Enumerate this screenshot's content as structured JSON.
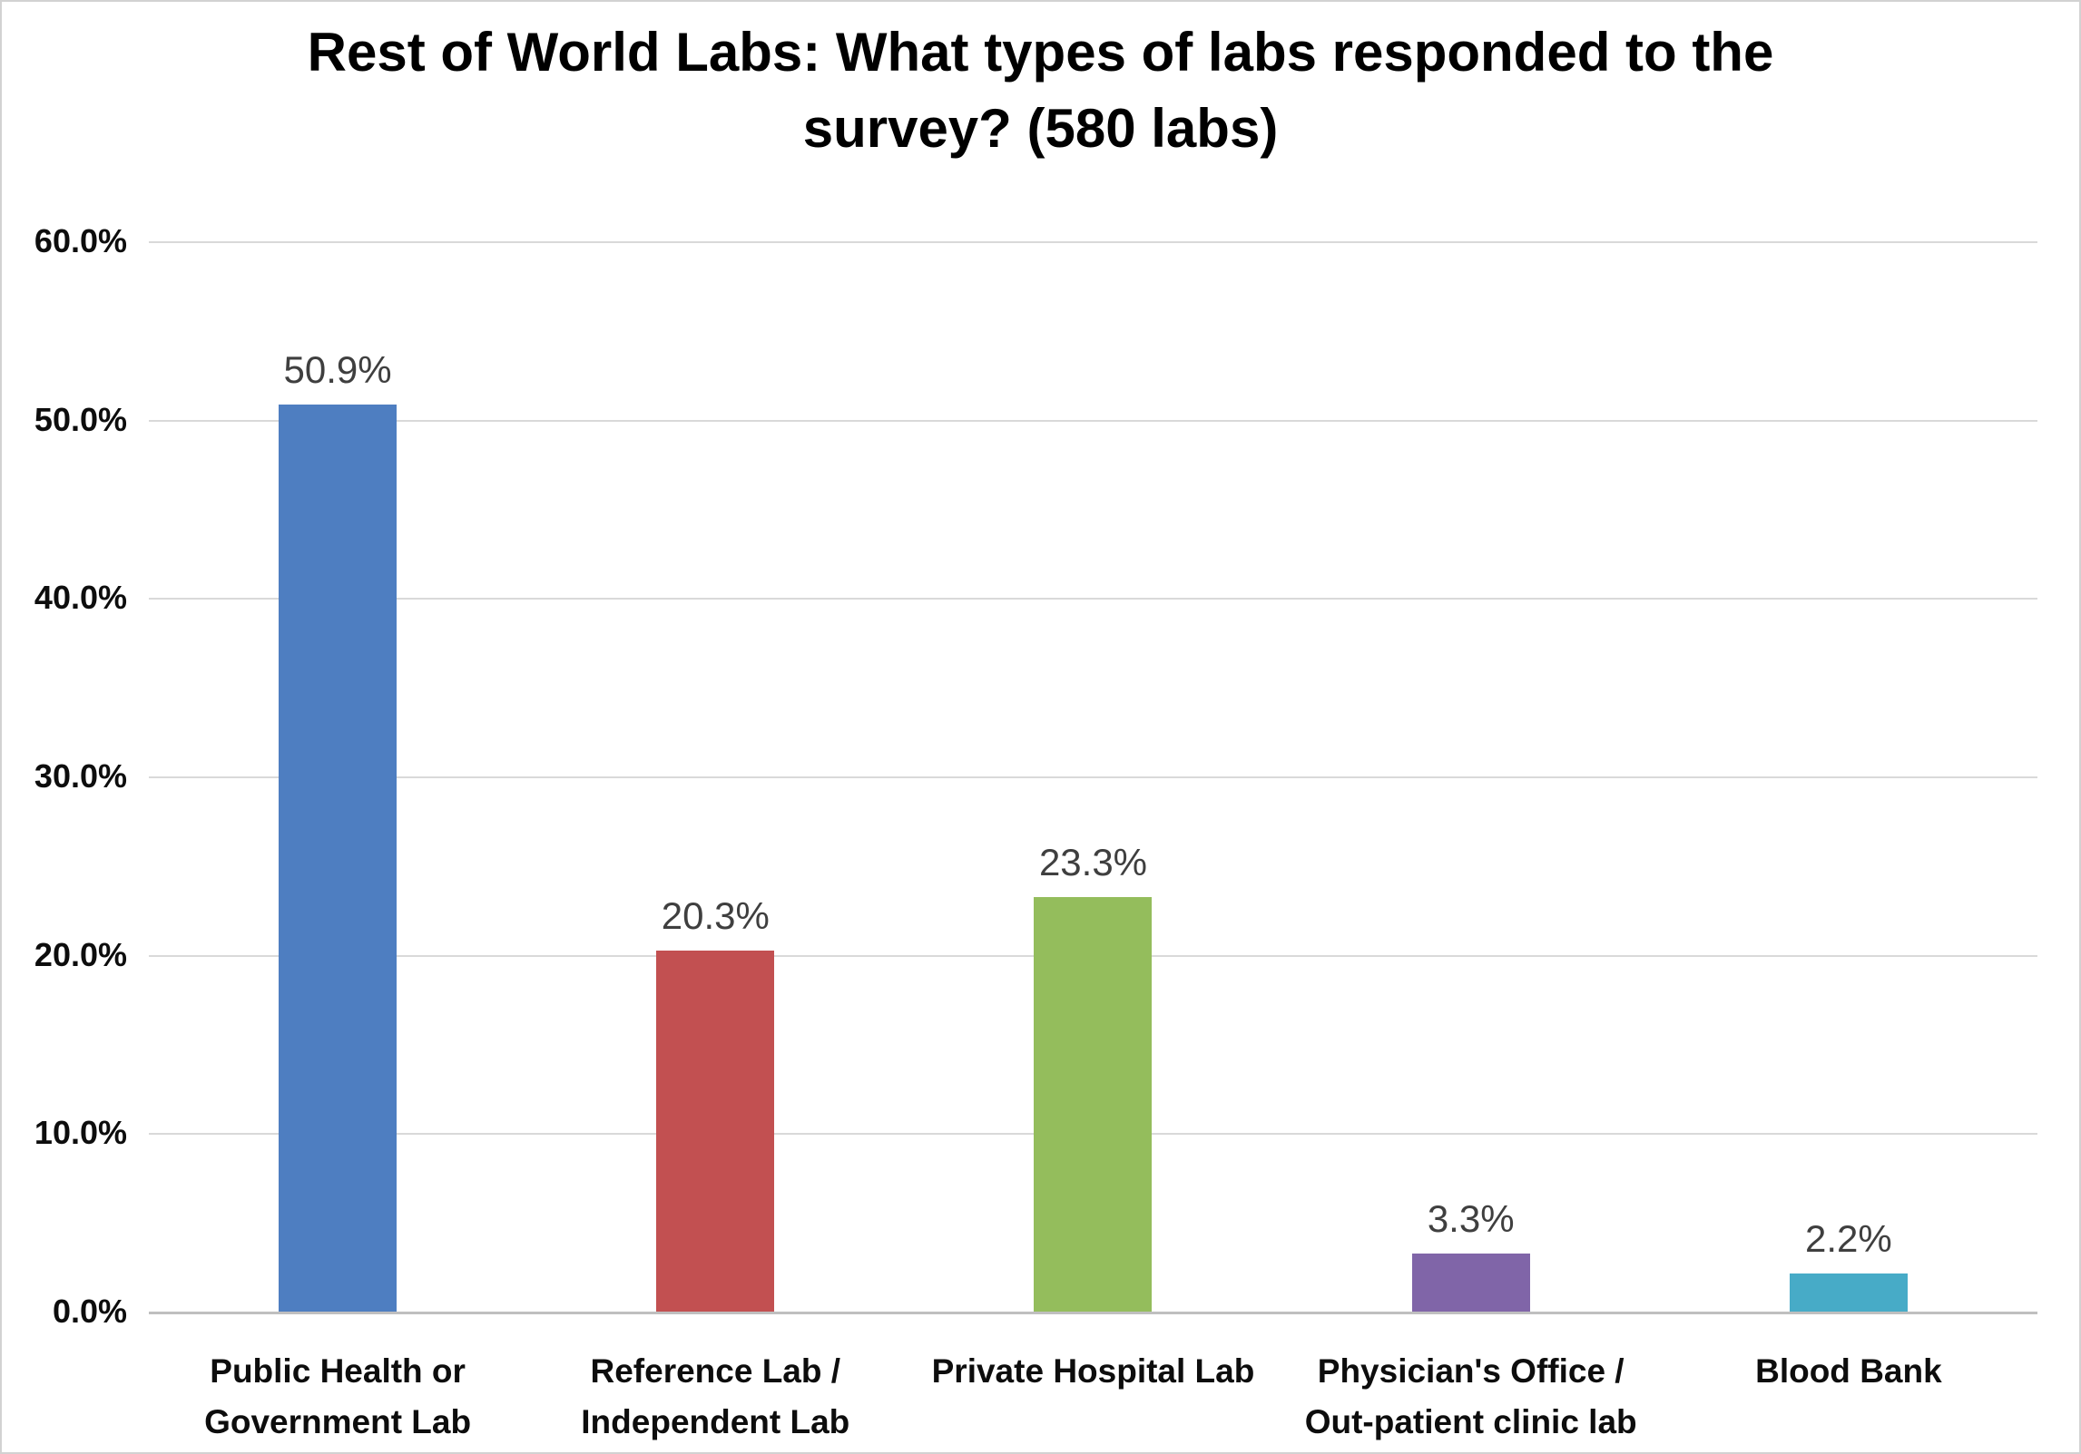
{
  "chart_data": {
    "type": "bar",
    "title": "Rest of World Labs: What types of labs responded to the survey? (580 labs)",
    "categories": [
      "Public Health or\nGovernment Lab",
      "Reference Lab /\nIndependent Lab",
      "Private Hospital Lab",
      "Physician's Office /\nOut-patient clinic lab",
      "Blood Bank"
    ],
    "values": [
      50.9,
      20.3,
      23.3,
      3.3,
      2.2
    ],
    "data_labels": [
      "50.9%",
      "20.3%",
      "23.3%",
      "3.3%",
      "2.2%"
    ],
    "bar_colors": [
      "#4E7EC1",
      "#C25051",
      "#94BD5C",
      "#8065A8",
      "#47ABC7"
    ],
    "xlabel": "",
    "ylabel": "",
    "ylim": [
      0,
      60
    ],
    "yticks": [
      "60.0%",
      "50.0%",
      "40.0%",
      "30.0%",
      "20.0%",
      "10.0%",
      "0.0%"
    ],
    "grid": "horizontal",
    "legend": "none"
  },
  "colors": {
    "background": "#FFFFFF",
    "frame_border": "#D2D2D2",
    "gridline": "#D9D9D9",
    "axis_line": "#BFBFBF",
    "title_text": "#000000",
    "tick_text": "#0D0D0D",
    "data_label_text": "#3F3F3F"
  }
}
